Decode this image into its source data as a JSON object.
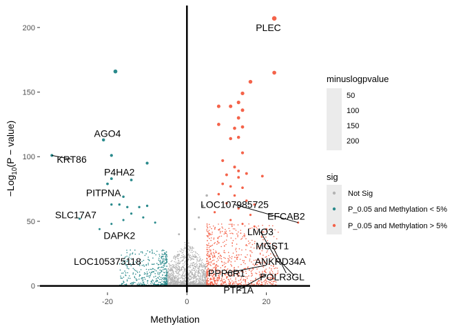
{
  "chart_data": {
    "type": "scatter",
    "xlabel": "Methylation",
    "ylabel_parts": [
      "−Log",
      "10",
      "(P − value)"
    ],
    "xlim": [
      -37,
      31
    ],
    "ylim": [
      -5,
      217
    ],
    "x_ticks": [
      -20,
      0,
      20
    ],
    "x_tick_labels": [
      "-20",
      "0",
      "20"
    ],
    "y_ticks": [
      0,
      50,
      100,
      150,
      200
    ],
    "y_tick_labels": [
      "0",
      "50",
      "100",
      "150",
      "200"
    ],
    "grid": false,
    "reference_lines": {
      "x": 0,
      "y": 0
    },
    "colors": {
      "Not Sig": "#b3b3b3",
      "P_0.05 and Methylation < 5%": "#2a8a8c",
      "P_0.05 and Methylation > 5%": "#f4634a"
    },
    "legend": {
      "position": "right",
      "size_title": "minuslogpvalue",
      "size_breaks": [
        "50",
        "100",
        "150",
        "200"
      ],
      "color_title": "sig",
      "color_entries": [
        "Not Sig",
        "P_0.05 and Methylation < 5%",
        "P_0.05 and Methylation > 5%"
      ]
    },
    "points": [
      {
        "x": 22,
        "y": 207,
        "group": "P_0.05 and Methylation > 5%"
      },
      {
        "x": -18,
        "y": 166,
        "group": "P_0.05 and Methylation < 5%"
      },
      {
        "x": -21,
        "y": 113,
        "group": "P_0.05 and Methylation < 5%"
      },
      {
        "x": -34,
        "y": 101,
        "group": "P_0.05 and Methylation < 5%"
      },
      {
        "x": -19,
        "y": 101,
        "group": "P_0.05 and Methylation < 5%"
      },
      {
        "x": -10,
        "y": 95,
        "group": "P_0.05 and Methylation < 5%"
      },
      {
        "x": -14,
        "y": 82,
        "group": "P_0.05 and Methylation < 5%"
      },
      {
        "x": -19,
        "y": 83,
        "group": "P_0.05 and Methylation < 5%"
      },
      {
        "x": -20,
        "y": 79,
        "group": "P_0.05 and Methylation < 5%"
      },
      {
        "x": -16,
        "y": 69,
        "group": "P_0.05 and Methylation < 5%"
      },
      {
        "x": -19,
        "y": 63,
        "group": "P_0.05 and Methylation < 5%"
      },
      {
        "x": -17,
        "y": 63,
        "group": "P_0.05 and Methylation < 5%"
      },
      {
        "x": -15,
        "y": 61,
        "group": "P_0.05 and Methylation < 5%"
      },
      {
        "x": -12,
        "y": 61,
        "group": "P_0.05 and Methylation < 5%"
      },
      {
        "x": -10,
        "y": 62,
        "group": "P_0.05 and Methylation < 5%"
      },
      {
        "x": -14,
        "y": 56,
        "group": "P_0.05 and Methylation < 5%"
      },
      {
        "x": -27,
        "y": 52,
        "group": "P_0.05 and Methylation < 5%"
      },
      {
        "x": -11,
        "y": 53,
        "group": "P_0.05 and Methylation < 5%"
      },
      {
        "x": -16,
        "y": 51,
        "group": "P_0.05 and Methylation < 5%"
      },
      {
        "x": -8,
        "y": 49,
        "group": "P_0.05 and Methylation < 5%"
      },
      {
        "x": -19,
        "y": 48,
        "group": "P_0.05 and Methylation < 5%"
      },
      {
        "x": -22,
        "y": 44,
        "group": "P_0.05 and Methylation < 5%"
      },
      {
        "x": 22,
        "y": 165,
        "group": "P_0.05 and Methylation > 5%"
      },
      {
        "x": 16,
        "y": 158,
        "group": "P_0.05 and Methylation > 5%"
      },
      {
        "x": 14,
        "y": 149,
        "group": "P_0.05 and Methylation > 5%"
      },
      {
        "x": 13,
        "y": 142,
        "group": "P_0.05 and Methylation > 5%"
      },
      {
        "x": 8,
        "y": 139,
        "group": "P_0.05 and Methylation > 5%"
      },
      {
        "x": 11,
        "y": 139,
        "group": "P_0.05 and Methylation > 5%"
      },
      {
        "x": 14,
        "y": 136,
        "group": "P_0.05 and Methylation > 5%"
      },
      {
        "x": 13,
        "y": 130,
        "group": "P_0.05 and Methylation > 5%"
      },
      {
        "x": 8,
        "y": 125,
        "group": "P_0.05 and Methylation > 5%"
      },
      {
        "x": 12,
        "y": 122,
        "group": "P_0.05 and Methylation > 5%"
      },
      {
        "x": 14,
        "y": 123,
        "group": "P_0.05 and Methylation > 5%"
      },
      {
        "x": 11,
        "y": 114,
        "group": "P_0.05 and Methylation > 5%"
      },
      {
        "x": 13,
        "y": 115,
        "group": "P_0.05 and Methylation > 5%"
      },
      {
        "x": 14,
        "y": 103,
        "group": "P_0.05 and Methylation > 5%"
      },
      {
        "x": 9,
        "y": 97,
        "group": "P_0.05 and Methylation > 5%"
      },
      {
        "x": 12,
        "y": 92,
        "group": "P_0.05 and Methylation > 5%"
      },
      {
        "x": 13,
        "y": 89,
        "group": "P_0.05 and Methylation > 5%"
      },
      {
        "x": 15,
        "y": 87,
        "group": "P_0.05 and Methylation > 5%"
      },
      {
        "x": 10,
        "y": 86,
        "group": "P_0.05 and Methylation > 5%"
      },
      {
        "x": 13,
        "y": 84,
        "group": "P_0.05 and Methylation > 5%"
      },
      {
        "x": 19,
        "y": 85,
        "group": "P_0.05 and Methylation > 5%"
      },
      {
        "x": 9,
        "y": 79,
        "group": "P_0.05 and Methylation > 5%"
      },
      {
        "x": 11,
        "y": 77,
        "group": "P_0.05 and Methylation > 5%"
      },
      {
        "x": 14,
        "y": 76,
        "group": "P_0.05 and Methylation > 5%"
      },
      {
        "x": 8,
        "y": 71,
        "group": "P_0.05 and Methylation > 5%"
      },
      {
        "x": 12,
        "y": 70,
        "group": "P_0.05 and Methylation > 5%"
      },
      {
        "x": 15,
        "y": 66,
        "group": "P_0.05 and Methylation > 5%"
      },
      {
        "x": 10,
        "y": 64,
        "group": "P_0.05 and Methylation > 5%"
      },
      {
        "x": 17,
        "y": 63,
        "group": "P_0.05 and Methylation > 5%"
      },
      {
        "x": 13,
        "y": 60,
        "group": "P_0.05 and Methylation > 5%"
      },
      {
        "x": 7,
        "y": 57,
        "group": "P_0.05 and Methylation > 5%"
      },
      {
        "x": 16,
        "y": 55,
        "group": "P_0.05 and Methylation > 5%"
      },
      {
        "x": 28,
        "y": 49,
        "group": "P_0.05 and Methylation > 5%"
      },
      {
        "x": 11,
        "y": 51,
        "group": "P_0.05 and Methylation > 5%"
      },
      {
        "x": 14,
        "y": 48,
        "group": "P_0.05 and Methylation > 5%"
      },
      {
        "x": 17,
        "y": 46,
        "group": "P_0.05 and Methylation > 5%"
      },
      {
        "x": 20,
        "y": 44,
        "group": "P_0.05 and Methylation > 5%"
      },
      {
        "x": 5,
        "y": 70,
        "group": "Not Sig"
      },
      {
        "x": 4,
        "y": 62,
        "group": "Not Sig"
      },
      {
        "x": 3,
        "y": 53,
        "group": "Not Sig"
      },
      {
        "x": -2,
        "y": 40,
        "group": "Not Sig"
      },
      {
        "x": 2,
        "y": 44,
        "group": "Not Sig"
      }
    ],
    "labels": [
      {
        "text": "PLEC",
        "x": 20.5,
        "y": 200,
        "anchor_x": 22,
        "anchor_y": 207
      },
      {
        "text": "AGO4",
        "x": -20,
        "y": 118,
        "anchor_x": -21,
        "anchor_y": 113
      },
      {
        "text": "KRT86",
        "x": -29,
        "y": 98,
        "anchor_x": -34,
        "anchor_y": 101
      },
      {
        "text": "P4HA2",
        "x": -17,
        "y": 88,
        "anchor_x": -19,
        "anchor_y": 83
      },
      {
        "text": "PITPNA",
        "x": -21,
        "y": 72,
        "anchor_x": -20,
        "anchor_y": 79
      },
      {
        "text": "SLC17A7",
        "x": -28,
        "y": 55,
        "anchor_x": -27,
        "anchor_y": 52
      },
      {
        "text": "DAPK2",
        "x": -17,
        "y": 39,
        "anchor_x": -16,
        "anchor_y": 44
      },
      {
        "text": "LOC105375118",
        "x": -20,
        "y": 19,
        "anchor_x": -19,
        "anchor_y": 23
      },
      {
        "text": "LOC107985725",
        "x": 12,
        "y": 63,
        "anchor_x": 28,
        "anchor_y": 49
      },
      {
        "text": "EFCAB2",
        "x": 25,
        "y": 54,
        "anchor_x": 28,
        "anchor_y": 49
      },
      {
        "text": "LMO3",
        "x": 18.5,
        "y": 42,
        "anchor_x": 23,
        "anchor_y": 18
      },
      {
        "text": "MGST1",
        "x": 21.5,
        "y": 31,
        "anchor_x": 25,
        "anchor_y": 10
      },
      {
        "text": "ANKRD34A",
        "x": 23.5,
        "y": 19,
        "anchor_x": 27,
        "anchor_y": 8
      },
      {
        "text": "PPP6R1",
        "x": 10,
        "y": 10,
        "anchor_x": 20,
        "anchor_y": 16
      },
      {
        "text": "POLR3GL",
        "x": 24,
        "y": 7,
        "anchor_x": 21,
        "anchor_y": 4
      },
      {
        "text": "PTF1A",
        "x": 13,
        "y": -3,
        "anchor_x": 20,
        "anchor_y": 9
      }
    ]
  }
}
